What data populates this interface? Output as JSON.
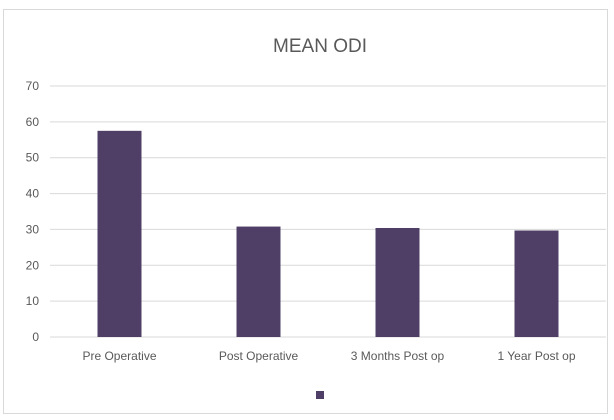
{
  "chart_data": {
    "type": "bar",
    "title": "MEAN ODI",
    "xlabel": "",
    "ylabel": "",
    "categories": [
      "Pre Operative",
      "Post Operative",
      "3 Months Post op",
      "1 Year Post op"
    ],
    "series": [
      {
        "values": [
          57.5,
          30.8,
          30.4,
          29.7
        ]
      }
    ],
    "ylim": [
      0,
      70
    ],
    "yticks": [
      0,
      10,
      20,
      30,
      40,
      50,
      60,
      70
    ],
    "grid": true,
    "legend": "bottom",
    "colors": {
      "bar": "#4f3f66",
      "grid": "#d9d9d9",
      "text": "#595959"
    }
  }
}
